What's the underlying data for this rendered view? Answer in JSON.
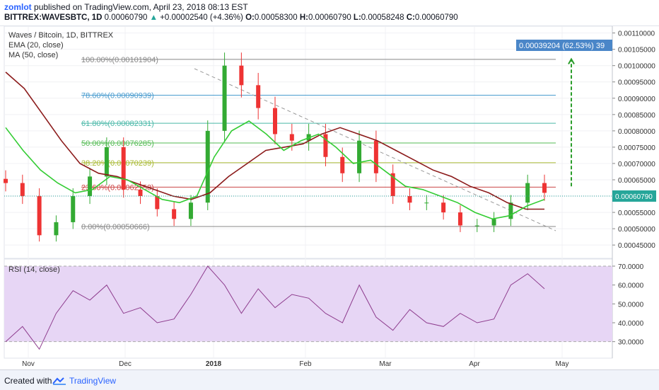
{
  "header": {
    "author": "zomlot",
    "published_text": "published on TradingView.com, April 23, 2018 08:13 EST",
    "symbol": "BITTREX:WAVESBTC, 1D",
    "last": "0.00060790",
    "change": "+0.00002540 (+4.36%)",
    "o_label": "O:",
    "o_value": "0.00058300",
    "h_label": "H:",
    "h_value": "0.00060790",
    "l_label": "L:",
    "l_value": "0.00058248",
    "c_label": "C:",
    "c_value": "0.00060790"
  },
  "legend": {
    "title": "Waves / Bitcoin, 1D, BITTREX",
    "ema": "EMA (20, close)",
    "ma": "MA (50, close)",
    "rsi": "RSI (14, close)"
  },
  "footer": {
    "created_with": "Created with",
    "brand": "TradingView"
  },
  "colors": {
    "ema": "#33cc33",
    "ma": "#8b1a1a",
    "rsi": "#8e3d8e",
    "up_candle": "#33aa33",
    "down_candle": "#ee3333",
    "fib_100": "#888888",
    "fib_786": "#4a9ccf",
    "fib_618": "#4ab8a8",
    "fib_50": "#55bb55",
    "fib_382": "#aabb33",
    "fib_236": "#cc4444",
    "fib_0": "#888888",
    "rsi_band": "#e7d6f5",
    "measure": "#2a9d2a",
    "badge": "#4a86c8"
  },
  "chart_data": [
    {
      "type": "line",
      "title": "Waves / Bitcoin, 1D, BITTREX",
      "y_axis_ticks": [
        "0.00045000",
        "0.00050000",
        "0.00055000",
        "0.00060000",
        "0.00065000",
        "0.00070000",
        "0.00075000",
        "0.00080000",
        "0.00085000",
        "0.00090000",
        "0.00095000",
        "0.00100000",
        "0.00105000",
        "0.00110000"
      ],
      "x_axis_ticks": [
        "Nov",
        "Dec",
        "2018",
        "Feb",
        "Mar",
        "Apr",
        "May"
      ],
      "ylim": [
        0.00042,
        0.00111
      ],
      "last_price_label": "0.00060790",
      "measure_label": "0.00039204 (62.53%) 39",
      "fib_levels": [
        {
          "label": "100.00%(0.00101904)",
          "value": 0.00101904
        },
        {
          "label": "78.60%(0.00090939)",
          "value": 0.00090939
        },
        {
          "label": "61.80%(0.00082331)",
          "value": 0.00082331
        },
        {
          "label": "50.00%(0.00076285)",
          "value": 0.00076285
        },
        {
          "label": "38.20%(0.00070239)",
          "value": 0.00070239
        },
        {
          "label": "23.60%(0.00062758)",
          "value": 0.00062758
        },
        {
          "label": "0.00%(0.00050666)",
          "value": 0.00050666
        }
      ],
      "series": [
        {
          "name": "EMA (20, close)",
          "values": [
            0.00081,
            0.00074,
            0.00068,
            0.00064,
            0.00061,
            0.00062,
            0.00066,
            0.00065,
            0.00062,
            0.00059,
            0.00058,
            0.0006,
            0.00072,
            0.0008,
            0.00083,
            0.00079,
            0.00074,
            0.00077,
            0.00079,
            0.00075,
            0.0007,
            0.00071,
            0.00067,
            0.00063,
            0.00062,
            0.0006,
            0.00058,
            0.00055,
            0.00053,
            0.00054,
            0.00057,
            0.00059
          ]
        },
        {
          "name": "MA (50, close)",
          "values": [
            0.00098,
            0.00093,
            0.00085,
            0.00077,
            0.0007,
            0.00067,
            0.00066,
            0.00064,
            0.00062,
            0.0006,
            0.00059,
            0.00061,
            0.00066,
            0.0007,
            0.00074,
            0.00075,
            0.00076,
            0.00079,
            0.00081,
            0.00079,
            0.00077,
            0.00074,
            0.00071,
            0.00068,
            0.00066,
            0.00063,
            0.00061,
            0.00058,
            0.00056,
            0.00056
          ]
        },
        {
          "name": "Close",
          "values": [
            0.00064,
            0.0006,
            0.00048,
            0.00052,
            0.0006,
            0.00066,
            0.00075,
            0.00062,
            0.0006,
            0.00056,
            0.00053,
            0.00058,
            0.0008,
            0.001,
            0.00094,
            0.00087,
            0.00079,
            0.00077,
            0.00079,
            0.00072,
            0.00067,
            0.00077,
            0.00067,
            0.0006,
            0.00058,
            0.00058,
            0.00055,
            0.00051,
            0.00051,
            0.00053,
            0.00058,
            0.00064,
            0.00061
          ]
        }
      ]
    },
    {
      "type": "line",
      "title": "RSI (14, close)",
      "y_axis_ticks": [
        "30.0000",
        "40.0000",
        "50.0000",
        "60.0000",
        "70.0000"
      ],
      "ylim": [
        22,
        73
      ],
      "band": [
        30,
        70
      ],
      "series": [
        {
          "name": "RSI (14, close)",
          "values": [
            30,
            38,
            26,
            45,
            57,
            52,
            60,
            45,
            48,
            40,
            42,
            55,
            70,
            60,
            45,
            58,
            48,
            55,
            53,
            45,
            40,
            60,
            43,
            36,
            47,
            40,
            38,
            45,
            40,
            42,
            60,
            66,
            58
          ]
        }
      ]
    }
  ]
}
